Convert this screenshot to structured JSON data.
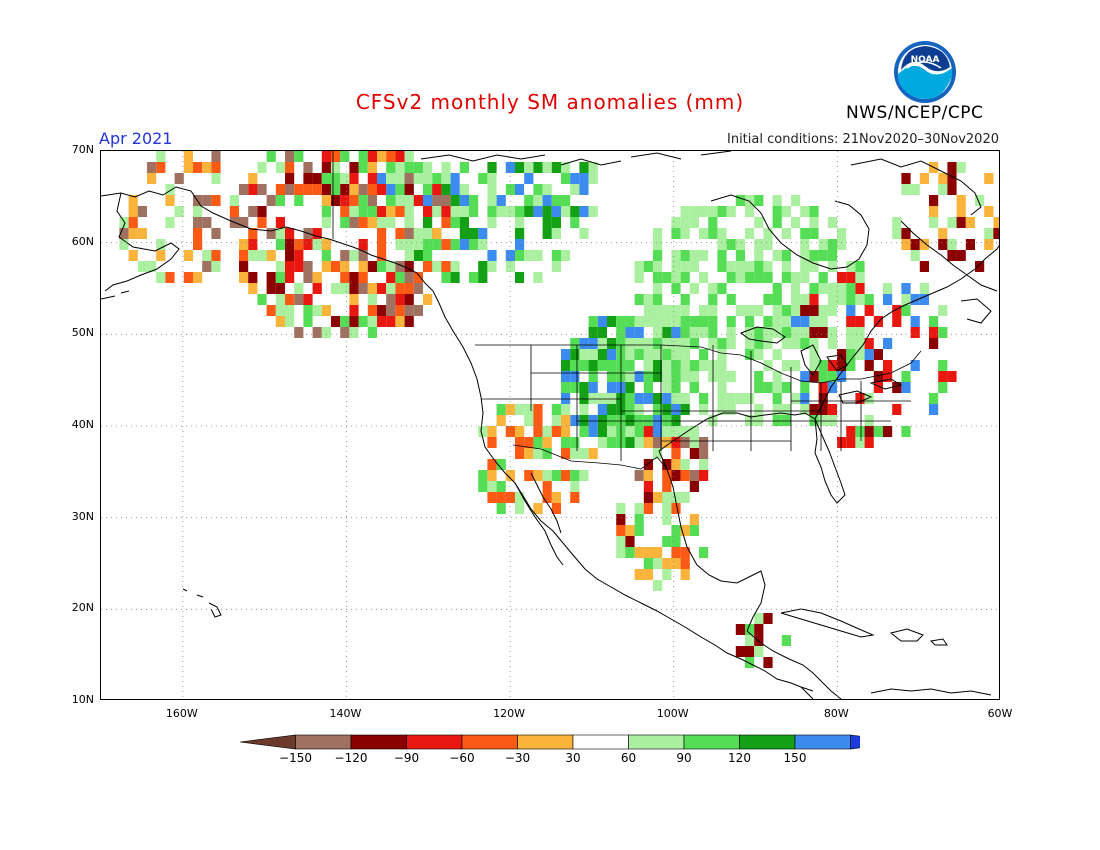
{
  "title": "CFSv2 monthly SM anomalies (mm)",
  "valid_month": "Apr 2021",
  "initial_conditions": "Initial conditions: 21Nov2020–30Nov2020",
  "agency": "NWS/NCEP/CPC",
  "logo_text": "NOAA",
  "map": {
    "lat_range": [
      10,
      70
    ],
    "lon_range": [
      -170,
      -60
    ],
    "lat_ticks": [
      "70N",
      "60N",
      "50N",
      "40N",
      "30N",
      "20N",
      "10N"
    ],
    "lon_ticks": [
      "160W",
      "140W",
      "120W",
      "100W",
      "80W",
      "60W"
    ],
    "grid": "dotted"
  },
  "colorbar": {
    "labels": [
      "−150",
      "−120",
      "−90",
      "−60",
      "−30",
      "30",
      "60",
      "90",
      "120",
      "150"
    ],
    "colors": [
      "#6b3a2a",
      "#a07060",
      "#8b0000",
      "#e81810",
      "#fa5a14",
      "#fab43c",
      "#ffffff",
      "#aaf0a0",
      "#55dd55",
      "#14a014",
      "#3c8cf0",
      "#1e3cdc"
    ]
  },
  "colors": {
    "title": "#e00000",
    "valid_month": "#2233dd",
    "outline": "#000000"
  }
}
